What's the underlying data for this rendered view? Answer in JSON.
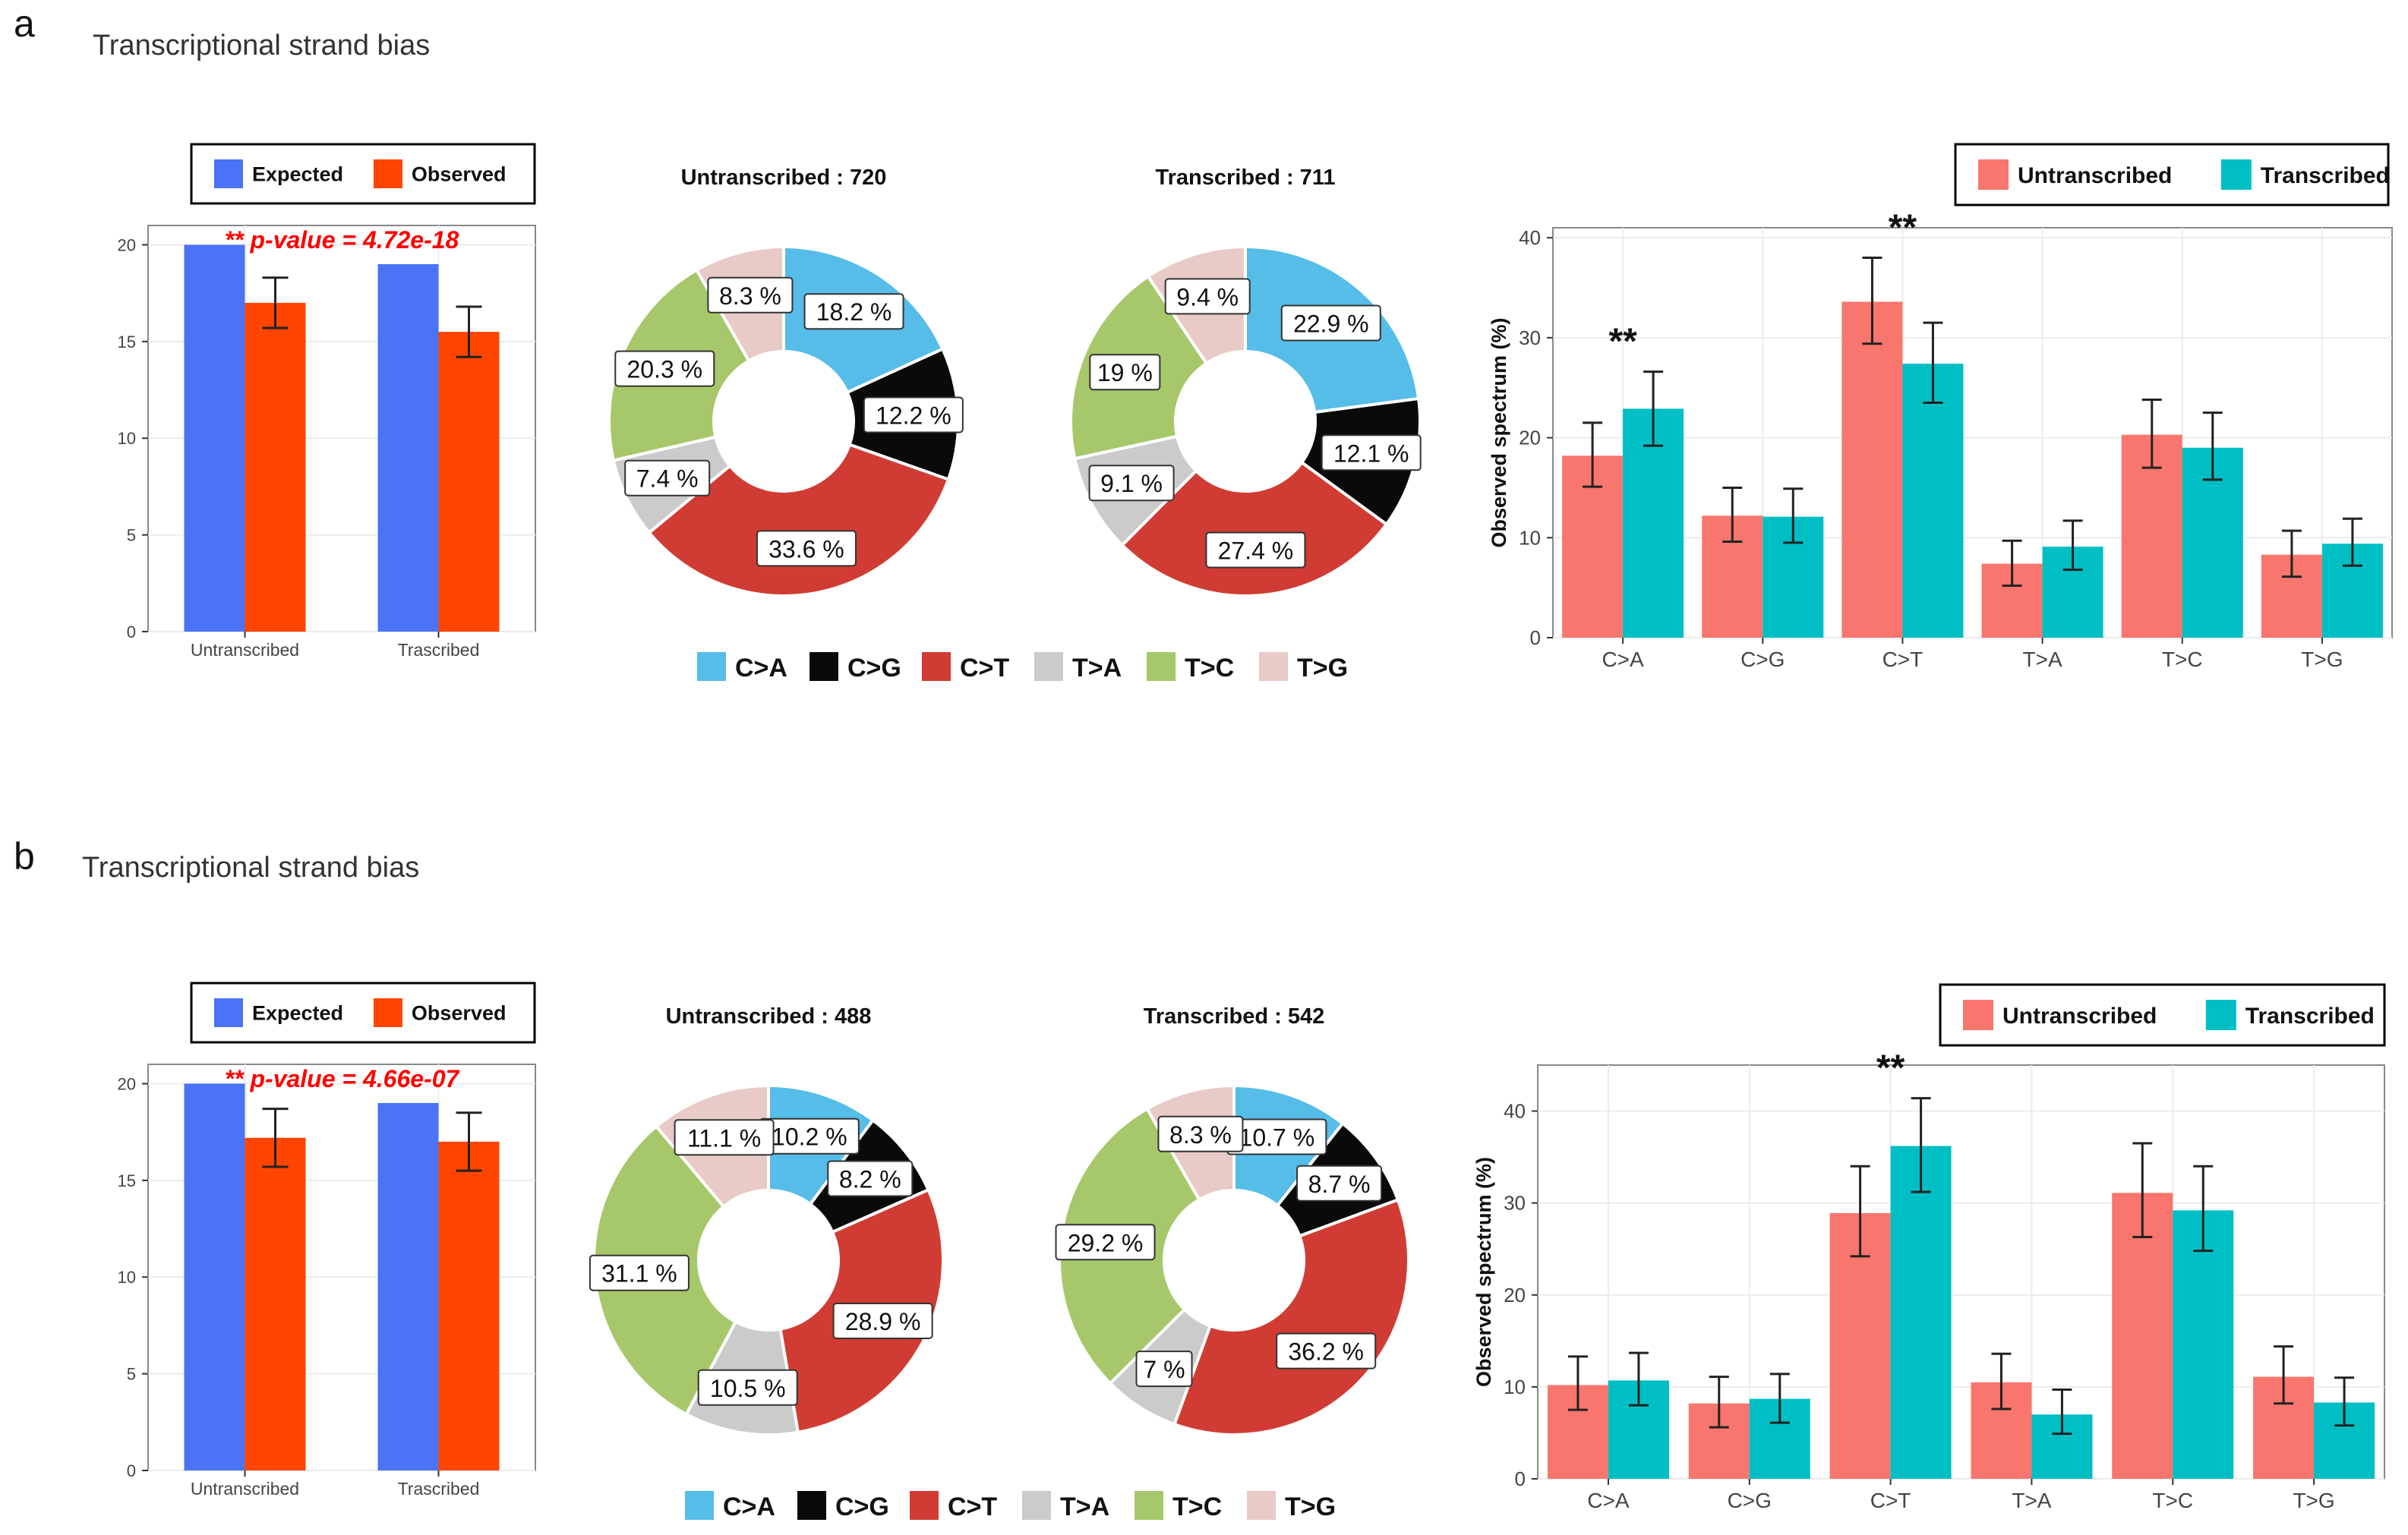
{
  "colors": {
    "expected": "#4a74f5",
    "observed": "#ff4500",
    "untranscribed": "#f8766d",
    "transcribed": "#00bfc4",
    "pvalue": "#ff0000",
    "mut": {
      "C>A": "#56bde9",
      "C>G": "#0a0a0a",
      "C>T": "#d03c33",
      "T>A": "#cbcbcb",
      "T>C": "#a6c86a",
      "T>G": "#e8cac6"
    }
  },
  "panels": [
    {
      "letter": "a",
      "title": "Transcriptional strand bias",
      "chart_data": [
        {
          "type": "bar",
          "legend": [
            "Expected",
            "Observed"
          ],
          "categories": [
            "Untranscribed",
            "Trascribed"
          ],
          "series": [
            {
              "name": "Expected",
              "values": [
                20,
                19
              ]
            },
            {
              "name": "Observed",
              "values": [
                17,
                15.5
              ],
              "error": [
                1.3,
                1.3
              ]
            }
          ],
          "ylim": [
            0,
            21
          ],
          "yticks": [
            0,
            5,
            10,
            15,
            20
          ],
          "annotation": "** p-value = 4.72e-18"
        },
        {
          "type": "pie",
          "title": "Untranscribed : 720",
          "categories": [
            "C>A",
            "C>G",
            "C>T",
            "T>A",
            "T>C",
            "T>G"
          ],
          "values": [
            18.2,
            12.2,
            33.6,
            7.4,
            20.3,
            8.3
          ],
          "labels": [
            "18.2 %",
            "12.2 %",
            "33.6 %",
            "7.4 %",
            "20.3 %",
            "8.3 %"
          ]
        },
        {
          "type": "pie",
          "title": "Transcribed : 711",
          "categories": [
            "C>A",
            "C>G",
            "C>T",
            "T>A",
            "T>C",
            "T>G"
          ],
          "values": [
            22.9,
            12.1,
            27.4,
            9.1,
            19,
            9.4
          ],
          "labels": [
            "22.9 %",
            "12.1 %",
            "27.4 %",
            "9.1 %",
            "19 %",
            "9.4 %"
          ]
        },
        {
          "type": "bar",
          "legend": [
            "Untranscribed",
            "Transcribed"
          ],
          "categories": [
            "C>A",
            "C>G",
            "C>T",
            "T>A",
            "T>C",
            "T>G"
          ],
          "series": [
            {
              "name": "Untranscribed",
              "values": [
                18.2,
                12.2,
                33.6,
                7.4,
                20.3,
                8.3
              ],
              "err_low": [
                15.1,
                9.6,
                29.4,
                5.2,
                17.0,
                6.1
              ],
              "err_high": [
                21.5,
                15.0,
                38.0,
                9.7,
                23.8,
                10.7
              ]
            },
            {
              "name": "Transcribed",
              "values": [
                22.9,
                12.1,
                27.4,
                9.1,
                19.0,
                9.4
              ],
              "err_low": [
                19.2,
                9.5,
                23.5,
                6.8,
                15.8,
                7.2
              ],
              "err_high": [
                26.6,
                14.9,
                31.5,
                11.7,
                22.5,
                11.9
              ]
            }
          ],
          "ylabel": "Observed spectrum (%)",
          "ylim": [
            0,
            41
          ],
          "yticks": [
            0,
            10,
            20,
            30,
            40
          ],
          "significance": [
            {
              "category": "C>A",
              "label": "**"
            },
            {
              "category": "C>T",
              "label": "**"
            }
          ]
        }
      ]
    },
    {
      "letter": "b",
      "title": "Transcriptional strand bias",
      "chart_data": [
        {
          "type": "bar",
          "legend": [
            "Expected",
            "Observed"
          ],
          "categories": [
            "Untranscribed",
            "Trascribed"
          ],
          "series": [
            {
              "name": "Expected",
              "values": [
                20,
                19
              ]
            },
            {
              "name": "Observed",
              "values": [
                17.2,
                17
              ],
              "error": [
                1.5,
                1.5
              ]
            }
          ],
          "ylim": [
            0,
            21
          ],
          "yticks": [
            0,
            5,
            10,
            15,
            20
          ],
          "annotation": "** p-value = 4.66e-07"
        },
        {
          "type": "pie",
          "title": "Untranscribed : 488",
          "categories": [
            "C>A",
            "C>G",
            "C>T",
            "T>A",
            "T>C",
            "T>G"
          ],
          "values": [
            10.2,
            8.2,
            28.9,
            10.5,
            31.1,
            11.1
          ],
          "labels": [
            "10.2 %",
            "8.2 %",
            "28.9 %",
            "10.5 %",
            "31.1 %",
            "11.1 %"
          ]
        },
        {
          "type": "pie",
          "title": "Transcribed : 542",
          "categories": [
            "C>A",
            "C>G",
            "C>T",
            "T>A",
            "T>C",
            "T>G"
          ],
          "values": [
            10.7,
            8.7,
            36.2,
            7,
            29.2,
            8.3
          ],
          "labels": [
            "10.7 %",
            "8.7 %",
            "36.2 %",
            "7 %",
            "29.2 %",
            "8.3 %"
          ]
        },
        {
          "type": "bar",
          "legend": [
            "Untranscribed",
            "Transcribed"
          ],
          "categories": [
            "C>A",
            "C>G",
            "C>T",
            "T>A",
            "T>C",
            "T>G"
          ],
          "series": [
            {
              "name": "Untranscribed",
              "values": [
                10.2,
                8.2,
                28.9,
                10.5,
                31.1,
                11.1
              ],
              "err_low": [
                7.5,
                5.6,
                24.2,
                7.6,
                26.3,
                8.2
              ],
              "err_high": [
                13.3,
                11.1,
                34.0,
                13.6,
                36.5,
                14.4
              ]
            },
            {
              "name": "Transcribed",
              "values": [
                10.7,
                8.7,
                36.2,
                7.0,
                29.2,
                8.3
              ],
              "err_low": [
                8.0,
                6.1,
                31.2,
                4.9,
                24.8,
                5.8
              ],
              "err_high": [
                13.7,
                11.4,
                41.4,
                9.7,
                34.0,
                11.0
              ]
            }
          ],
          "ylabel": "Observed spectrum (%)",
          "ylim": [
            0,
            45
          ],
          "yticks": [
            0,
            10,
            20,
            30,
            40
          ],
          "significance": [
            {
              "category": "C>T",
              "label": "**"
            }
          ]
        }
      ]
    }
  ]
}
